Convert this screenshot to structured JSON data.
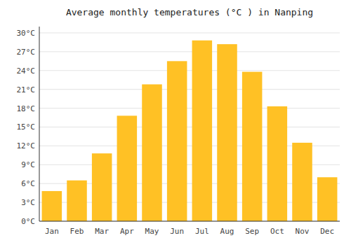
{
  "chart_data": {
    "type": "bar",
    "title": "Average monthly temperatures (°C ) in Nanping",
    "categories": [
      "Jan",
      "Feb",
      "Mar",
      "Apr",
      "May",
      "Jun",
      "Jul",
      "Aug",
      "Sep",
      "Oct",
      "Nov",
      "Dec"
    ],
    "values": [
      4.8,
      6.5,
      10.8,
      16.8,
      21.8,
      25.5,
      28.8,
      28.2,
      23.8,
      18.3,
      12.5,
      7.0
    ],
    "color": "#FFC125",
    "ylim": [
      0,
      31
    ],
    "yticks": [
      {
        "value": 0,
        "label": "0°C"
      },
      {
        "value": 3,
        "label": "3°C"
      },
      {
        "value": 6,
        "label": "6°C"
      },
      {
        "value": 9,
        "label": "9°C"
      },
      {
        "value": 12,
        "label": "12°C"
      },
      {
        "value": 15,
        "label": "15°C"
      },
      {
        "value": 18,
        "label": "18°C"
      },
      {
        "value": 21,
        "label": "21°C"
      },
      {
        "value": 24,
        "label": "24°C"
      },
      {
        "value": 27,
        "label": "27°C"
      },
      {
        "value": 30,
        "label": "30°C"
      }
    ],
    "grid": true
  }
}
